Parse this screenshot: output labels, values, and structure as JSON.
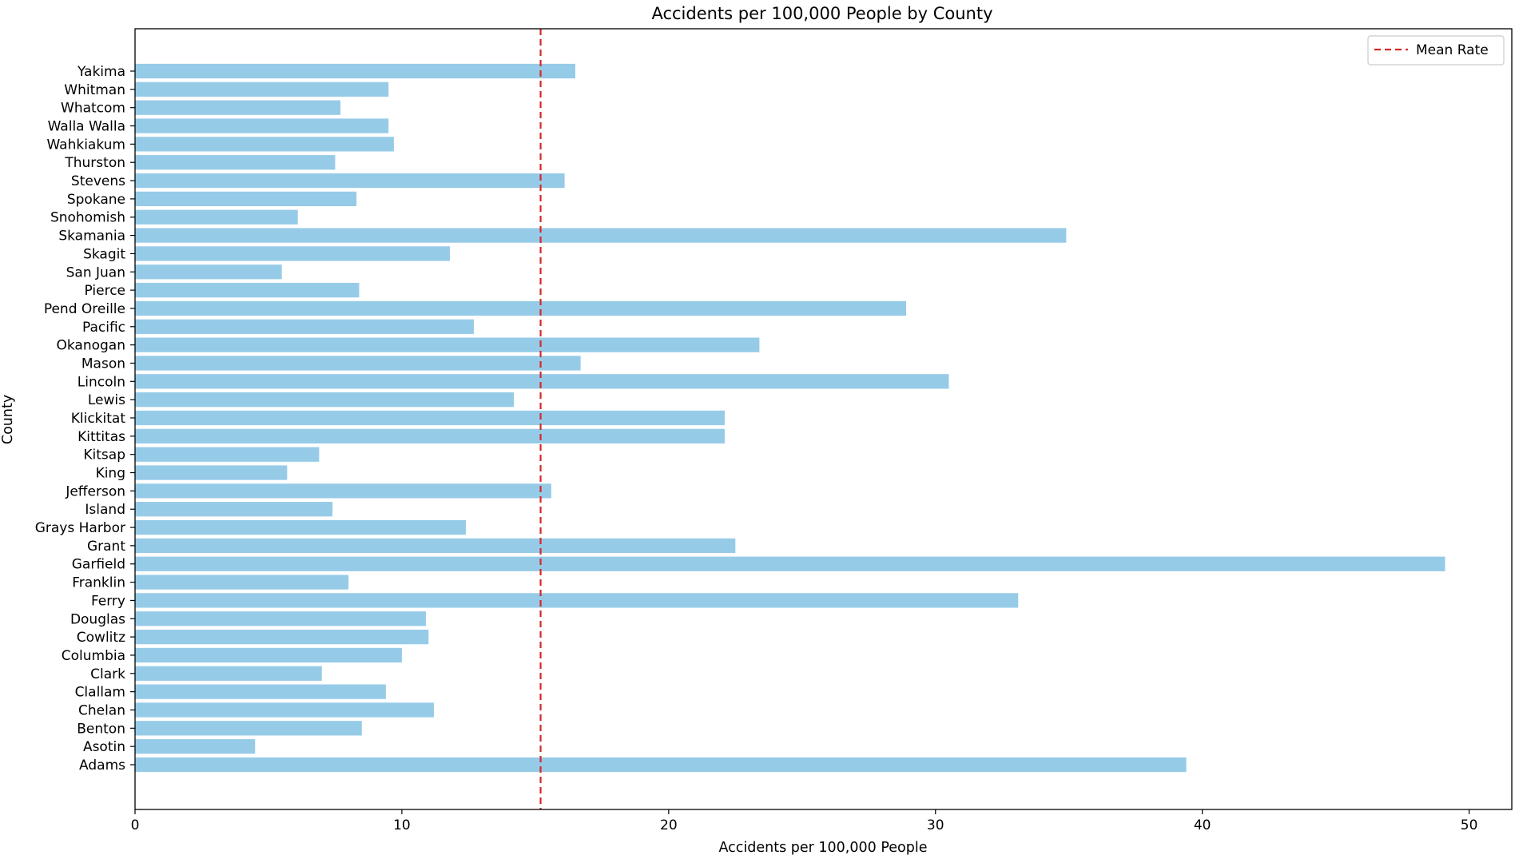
{
  "chart_data": {
    "type": "bar",
    "orientation": "horizontal",
    "title": "Accidents per 100,000 People by County",
    "xlabel": "Accidents per 100,000 People",
    "ylabel": "County",
    "xlim": [
      0,
      51.6
    ],
    "xticks": [
      0,
      10,
      20,
      30,
      40,
      50
    ],
    "grid": false,
    "bar_color": "#96CBE8",
    "categories": [
      "Adams",
      "Asotin",
      "Benton",
      "Chelan",
      "Clallam",
      "Clark",
      "Columbia",
      "Cowlitz",
      "Douglas",
      "Ferry",
      "Franklin",
      "Garfield",
      "Grant",
      "Grays Harbor",
      "Island",
      "Jefferson",
      "King",
      "Kitsap",
      "Kittitas",
      "Klickitat",
      "Lewis",
      "Lincoln",
      "Mason",
      "Okanogan",
      "Pacific",
      "Pend Oreille",
      "Pierce",
      "San Juan",
      "Skagit",
      "Skamania",
      "Snohomish",
      "Spokane",
      "Stevens",
      "Thurston",
      "Wahkiakum",
      "Walla Walla",
      "Whatcom",
      "Whitman",
      "Yakima"
    ],
    "values": [
      39.4,
      4.5,
      8.5,
      11.2,
      9.4,
      7.0,
      10.0,
      11.0,
      10.9,
      33.1,
      8.0,
      49.1,
      22.5,
      12.4,
      7.4,
      15.6,
      5.7,
      6.9,
      22.1,
      22.1,
      14.2,
      30.5,
      16.7,
      23.4,
      12.7,
      28.9,
      8.4,
      5.5,
      11.8,
      34.9,
      6.1,
      8.3,
      16.1,
      7.5,
      9.7,
      9.5,
      7.7,
      9.5,
      16.5
    ],
    "mean_line": {
      "value": 15.2,
      "label": "Mean Rate",
      "color": "#D62728",
      "style": "dashed"
    },
    "legend": {
      "position": "top-right",
      "entries": [
        "Mean Rate"
      ]
    }
  }
}
